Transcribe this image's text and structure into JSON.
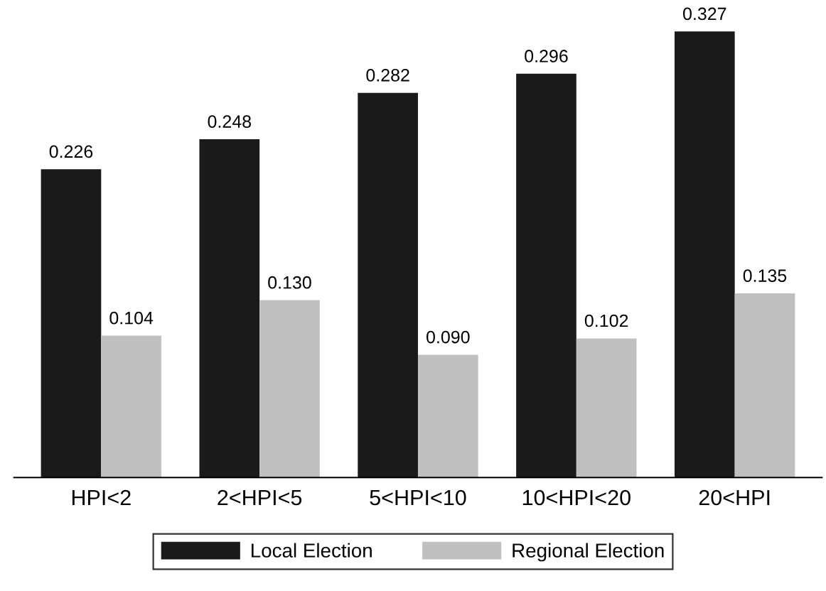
{
  "chart_data": {
    "type": "bar",
    "categories": [
      "HPI<2",
      "2<HPI<5",
      "5<HPI<10",
      "10<HPI<20",
      "20<HPI"
    ],
    "series": [
      {
        "name": "Local Election",
        "color": "#1a1a1a",
        "values": [
          0.226,
          0.248,
          0.282,
          0.296,
          0.327
        ],
        "value_labels": [
          "0.226",
          "0.248",
          "0.282",
          "0.296",
          "0.327"
        ]
      },
      {
        "name": "Regional Election",
        "color": "#c0c0c0",
        "values": [
          0.104,
          0.13,
          0.09,
          0.102,
          0.135
        ],
        "value_labels": [
          "0.104",
          "0.130",
          "0.090",
          "0.102",
          "0.135"
        ]
      }
    ],
    "legend": "bottom",
    "grid": false,
    "tick_labels": "x"
  }
}
